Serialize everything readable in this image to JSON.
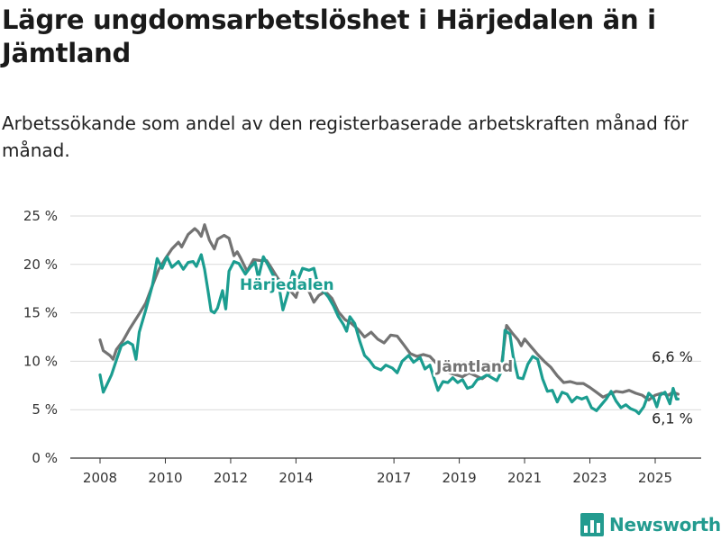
{
  "title": "Lägre ungdomsarbetslöshet i Härjedalen än i Jämtland",
  "subtitle": "Arbetssökande som andel av den registerbaserade arbetskraften månad för månad.",
  "brand": {
    "name": "Newsworthy",
    "logo_icon": "bar-chart-logo-icon"
  },
  "chart_data": {
    "type": "line",
    "x_ticks": [
      "2008",
      "2010",
      "2012",
      "2014",
      "2017",
      "2019",
      "2021",
      "2023",
      "2025"
    ],
    "x_tick_positions": [
      2008,
      2010,
      2012,
      2014,
      2017,
      2019,
      2021,
      2023,
      2025
    ],
    "xlim": [
      2007.1,
      2026.5
    ],
    "ylim": [
      0,
      25
    ],
    "y_ticks": [
      "0 %",
      "5 %",
      "10 %",
      "15 %",
      "20 %",
      "25 %"
    ],
    "y_tick_values": [
      0,
      5,
      10,
      15,
      20,
      25
    ],
    "grid": true,
    "series": [
      {
        "name": "Jämtland",
        "color": "#737373",
        "end_label": "6,6 %",
        "points": [
          [
            2008.0,
            12.2
          ],
          [
            2008.1,
            11.1
          ],
          [
            2008.3,
            10.6
          ],
          [
            2008.4,
            10.2
          ],
          [
            2008.5,
            11.2
          ],
          [
            2008.7,
            12.1
          ],
          [
            2008.9,
            13.3
          ],
          [
            2009.2,
            14.9
          ],
          [
            2009.4,
            16.0
          ],
          [
            2009.6,
            17.8
          ],
          [
            2009.8,
            19.5
          ],
          [
            2010.0,
            20.6
          ],
          [
            2010.2,
            21.6
          ],
          [
            2010.4,
            22.3
          ],
          [
            2010.5,
            21.8
          ],
          [
            2010.7,
            23.1
          ],
          [
            2010.9,
            23.7
          ],
          [
            2011.0,
            23.4
          ],
          [
            2011.1,
            22.9
          ],
          [
            2011.2,
            24.1
          ],
          [
            2011.35,
            22.5
          ],
          [
            2011.5,
            21.6
          ],
          [
            2011.6,
            22.6
          ],
          [
            2011.8,
            23.0
          ],
          [
            2011.95,
            22.7
          ],
          [
            2012.1,
            20.9
          ],
          [
            2012.2,
            21.3
          ],
          [
            2012.3,
            20.7
          ],
          [
            2012.5,
            19.3
          ],
          [
            2012.7,
            20.5
          ],
          [
            2012.9,
            20.4
          ],
          [
            2013.1,
            20.4
          ],
          [
            2013.2,
            19.9
          ],
          [
            2013.4,
            18.8
          ],
          [
            2013.6,
            17.8
          ],
          [
            2013.8,
            17.4
          ],
          [
            2014.0,
            16.6
          ],
          [
            2014.1,
            17.8
          ],
          [
            2014.3,
            18.3
          ],
          [
            2014.4,
            17.2
          ],
          [
            2014.55,
            16.1
          ],
          [
            2014.7,
            16.8
          ],
          [
            2014.9,
            17.2
          ],
          [
            2015.1,
            16.5
          ],
          [
            2015.3,
            15.1
          ],
          [
            2015.5,
            14.3
          ],
          [
            2015.7,
            13.9
          ],
          [
            2015.9,
            13.3
          ],
          [
            2016.1,
            12.5
          ],
          [
            2016.3,
            13.0
          ],
          [
            2016.5,
            12.3
          ],
          [
            2016.7,
            11.9
          ],
          [
            2016.9,
            12.7
          ],
          [
            2017.1,
            12.6
          ],
          [
            2017.3,
            11.7
          ],
          [
            2017.5,
            10.8
          ],
          [
            2017.7,
            10.5
          ],
          [
            2017.9,
            10.7
          ],
          [
            2018.1,
            10.5
          ],
          [
            2018.3,
            9.8
          ],
          [
            2018.5,
            9.3
          ],
          [
            2018.7,
            8.8
          ],
          [
            2018.9,
            8.6
          ],
          [
            2019.1,
            8.4
          ],
          [
            2019.3,
            8.8
          ],
          [
            2019.5,
            8.5
          ],
          [
            2019.7,
            8.2
          ],
          [
            2019.9,
            8.7
          ],
          [
            2020.1,
            9.1
          ],
          [
            2020.3,
            9.8
          ],
          [
            2020.45,
            13.7
          ],
          [
            2020.6,
            13.0
          ],
          [
            2020.8,
            12.2
          ],
          [
            2020.9,
            11.6
          ],
          [
            2021.0,
            12.3
          ],
          [
            2021.2,
            11.5
          ],
          [
            2021.4,
            10.7
          ],
          [
            2021.6,
            10.0
          ],
          [
            2021.8,
            9.4
          ],
          [
            2022.0,
            8.5
          ],
          [
            2022.2,
            7.8
          ],
          [
            2022.4,
            7.9
          ],
          [
            2022.6,
            7.7
          ],
          [
            2022.8,
            7.7
          ],
          [
            2023.0,
            7.3
          ],
          [
            2023.2,
            6.8
          ],
          [
            2023.4,
            6.3
          ],
          [
            2023.6,
            6.6
          ],
          [
            2023.8,
            6.9
          ],
          [
            2024.0,
            6.8
          ],
          [
            2024.2,
            7.0
          ],
          [
            2024.4,
            6.7
          ],
          [
            2024.6,
            6.5
          ],
          [
            2024.8,
            6.0
          ],
          [
            2025.0,
            6.5
          ],
          [
            2025.2,
            6.7
          ],
          [
            2025.4,
            6.5
          ],
          [
            2025.55,
            6.8
          ],
          [
            2025.7,
            6.6
          ]
        ]
      },
      {
        "name": "Härjedalen",
        "color": "#1b9d90",
        "end_label": "6,1 %",
        "points": [
          [
            2008.0,
            8.6
          ],
          [
            2008.1,
            6.8
          ],
          [
            2008.2,
            7.5
          ],
          [
            2008.35,
            8.6
          ],
          [
            2008.5,
            10.1
          ],
          [
            2008.65,
            11.6
          ],
          [
            2008.85,
            12.0
          ],
          [
            2009.0,
            11.7
          ],
          [
            2009.1,
            10.2
          ],
          [
            2009.2,
            13.0
          ],
          [
            2009.4,
            15.3
          ],
          [
            2009.6,
            17.8
          ],
          [
            2009.75,
            20.6
          ],
          [
            2009.9,
            19.6
          ],
          [
            2010.05,
            20.8
          ],
          [
            2010.2,
            19.7
          ],
          [
            2010.4,
            20.3
          ],
          [
            2010.55,
            19.5
          ],
          [
            2010.7,
            20.2
          ],
          [
            2010.85,
            20.3
          ],
          [
            2010.95,
            19.8
          ],
          [
            2011.1,
            21.0
          ],
          [
            2011.2,
            19.5
          ],
          [
            2011.3,
            17.4
          ],
          [
            2011.4,
            15.2
          ],
          [
            2011.5,
            15.0
          ],
          [
            2011.6,
            15.5
          ],
          [
            2011.75,
            17.3
          ],
          [
            2011.85,
            15.4
          ],
          [
            2011.95,
            19.3
          ],
          [
            2012.1,
            20.3
          ],
          [
            2012.25,
            20.1
          ],
          [
            2012.45,
            19.0
          ],
          [
            2012.6,
            19.7
          ],
          [
            2012.75,
            20.2
          ],
          [
            2012.85,
            18.6
          ],
          [
            2013.0,
            20.8
          ],
          [
            2013.15,
            19.9
          ],
          [
            2013.3,
            18.9
          ],
          [
            2013.45,
            18.3
          ],
          [
            2013.6,
            15.3
          ],
          [
            2013.75,
            17.0
          ],
          [
            2013.9,
            19.3
          ],
          [
            2014.05,
            18.3
          ],
          [
            2014.2,
            19.6
          ],
          [
            2014.4,
            19.4
          ],
          [
            2014.55,
            19.6
          ],
          [
            2014.7,
            17.5
          ],
          [
            2014.85,
            17.2
          ],
          [
            2015.0,
            16.6
          ],
          [
            2015.15,
            15.7
          ],
          [
            2015.3,
            14.6
          ],
          [
            2015.45,
            13.8
          ],
          [
            2015.55,
            13.1
          ],
          [
            2015.65,
            14.6
          ],
          [
            2015.8,
            13.9
          ],
          [
            2015.95,
            12.1
          ],
          [
            2016.1,
            10.6
          ],
          [
            2016.25,
            10.1
          ],
          [
            2016.4,
            9.4
          ],
          [
            2016.6,
            9.1
          ],
          [
            2016.75,
            9.6
          ],
          [
            2016.95,
            9.3
          ],
          [
            2017.1,
            8.8
          ],
          [
            2017.25,
            10.0
          ],
          [
            2017.45,
            10.6
          ],
          [
            2017.6,
            9.9
          ],
          [
            2017.8,
            10.4
          ],
          [
            2017.95,
            9.2
          ],
          [
            2018.1,
            9.6
          ],
          [
            2018.25,
            8.0
          ],
          [
            2018.35,
            7.0
          ],
          [
            2018.5,
            7.9
          ],
          [
            2018.65,
            7.8
          ],
          [
            2018.8,
            8.3
          ],
          [
            2018.95,
            7.8
          ],
          [
            2019.1,
            8.1
          ],
          [
            2019.25,
            7.2
          ],
          [
            2019.4,
            7.4
          ],
          [
            2019.55,
            8.1
          ],
          [
            2019.7,
            8.3
          ],
          [
            2019.85,
            8.6
          ],
          [
            2020.0,
            8.3
          ],
          [
            2020.15,
            8.0
          ],
          [
            2020.3,
            9.0
          ],
          [
            2020.4,
            13.2
          ],
          [
            2020.55,
            12.8
          ],
          [
            2020.65,
            10.5
          ],
          [
            2020.8,
            8.3
          ],
          [
            2020.95,
            8.2
          ],
          [
            2021.1,
            9.7
          ],
          [
            2021.25,
            10.5
          ],
          [
            2021.4,
            10.2
          ],
          [
            2021.55,
            8.2
          ],
          [
            2021.7,
            6.9
          ],
          [
            2021.85,
            7.0
          ],
          [
            2022.0,
            5.8
          ],
          [
            2022.15,
            6.8
          ],
          [
            2022.3,
            6.6
          ],
          [
            2022.45,
            5.8
          ],
          [
            2022.6,
            6.3
          ],
          [
            2022.75,
            6.1
          ],
          [
            2022.9,
            6.3
          ],
          [
            2023.05,
            5.2
          ],
          [
            2023.2,
            4.9
          ],
          [
            2023.35,
            5.5
          ],
          [
            2023.5,
            6.1
          ],
          [
            2023.65,
            6.9
          ],
          [
            2023.8,
            5.9
          ],
          [
            2023.95,
            5.2
          ],
          [
            2024.1,
            5.5
          ],
          [
            2024.25,
            5.1
          ],
          [
            2024.4,
            4.9
          ],
          [
            2024.5,
            4.6
          ],
          [
            2024.65,
            5.3
          ],
          [
            2024.8,
            6.7
          ],
          [
            2024.95,
            6.2
          ],
          [
            2025.05,
            5.3
          ],
          [
            2025.15,
            6.5
          ],
          [
            2025.3,
            6.8
          ],
          [
            2025.45,
            5.6
          ],
          [
            2025.55,
            7.2
          ],
          [
            2025.65,
            6.1
          ],
          [
            2025.7,
            6.1
          ]
        ]
      }
    ]
  }
}
